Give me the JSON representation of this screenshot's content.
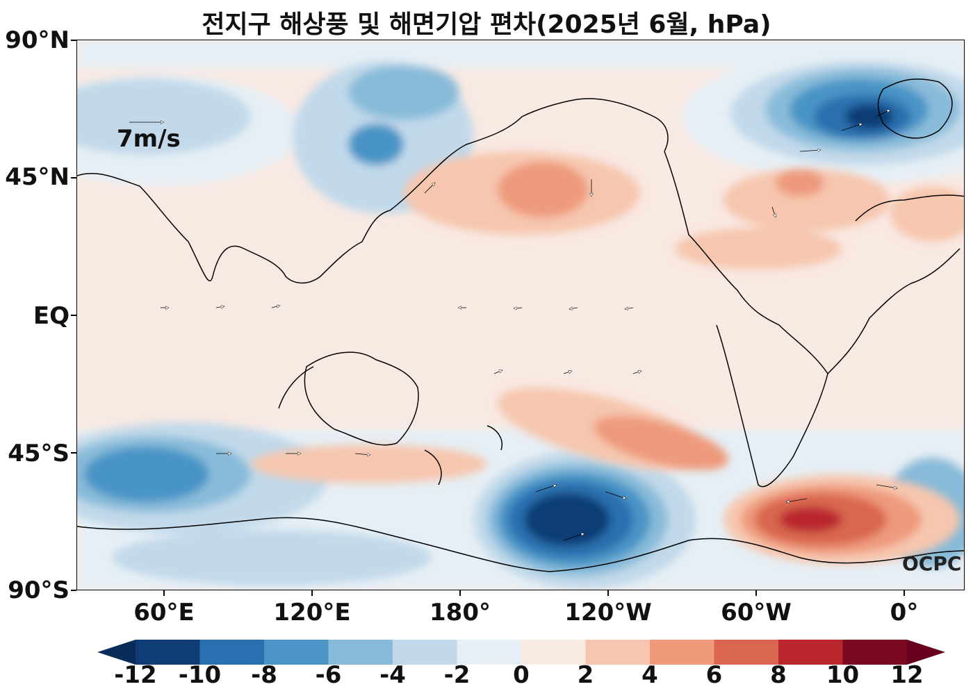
{
  "title": "전지구 해상풍 및 해면기압 편차(2025년 6월, hPa)",
  "lat_labels": [
    "90°N",
    "45°N",
    "EQ",
    "45°S",
    "90°S"
  ],
  "lon_labels": [
    "60°E",
    "120°E",
    "180°",
    "120°W",
    "60°W",
    "0°"
  ],
  "colorbar": {
    "ticks": [
      "-12",
      "-10",
      "-8",
      "-6",
      "-4",
      "-2",
      "0",
      "2",
      "4",
      "6",
      "8",
      "10",
      "12"
    ],
    "colors": [
      "#0d3d74",
      "#2a6faf",
      "#4a94c6",
      "#88bbd9",
      "#c1d9ea",
      "#e6eff5",
      "#f9e9e3",
      "#f6c6ae",
      "#ee9a7b",
      "#d96650",
      "#b9262e",
      "#7a0a22"
    ],
    "under_color": "#0a2c5a",
    "over_color": "#67001f"
  },
  "reference_vector_label": "7m/s",
  "watermark": "OCPC",
  "colors": {
    "land_outline": "#000000",
    "neutral": "#f9e9e3"
  }
}
